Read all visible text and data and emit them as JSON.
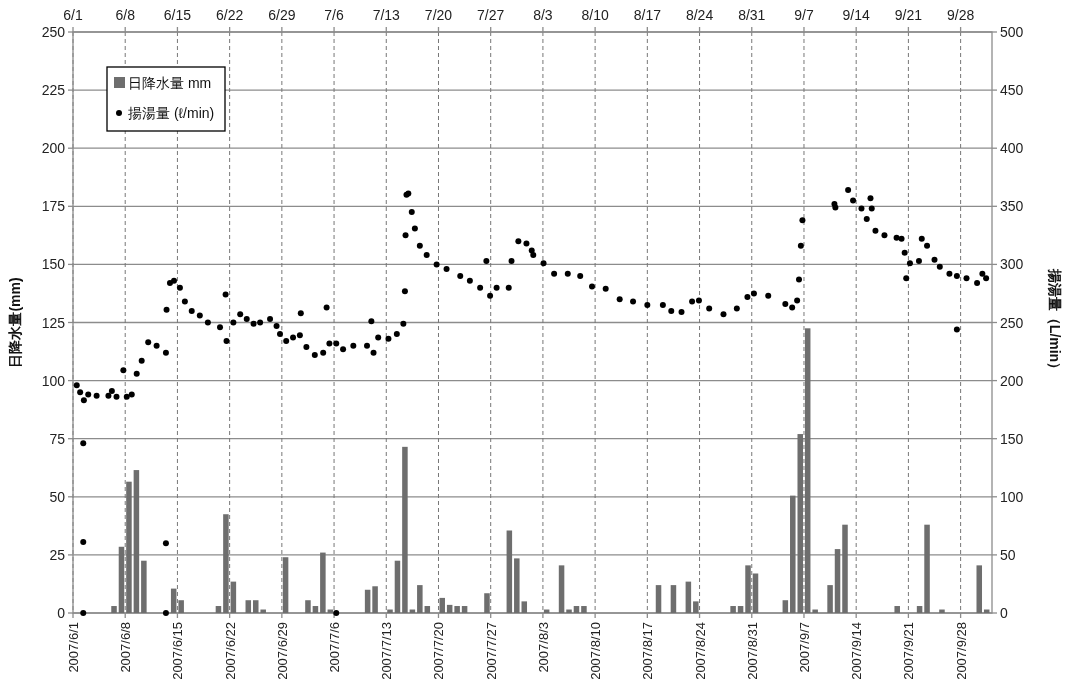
{
  "chart_data": {
    "type": "bar",
    "xlim": [
      "2007-06-01",
      "2007-10-02T05:00"
    ],
    "xticks": [
      {
        "value": "2007-06-01",
        "label": "2007/6/1"
      },
      {
        "value": "2007-06-08",
        "label": "2007/6/8"
      },
      {
        "value": "2007-06-15",
        "label": "2007/6/15"
      },
      {
        "value": "2007-06-22",
        "label": "2007/6/22"
      },
      {
        "value": "2007-06-29",
        "label": "2007/6/29"
      },
      {
        "value": "2007-07-06",
        "label": "2007/7/6"
      },
      {
        "value": "2007-07-13",
        "label": "2007/7/13"
      },
      {
        "value": "2007-07-20",
        "label": "2007/7/20"
      },
      {
        "value": "2007-07-27",
        "label": "2007/7/27"
      },
      {
        "value": "2007-08-03",
        "label": "2007/8/3"
      },
      {
        "value": "2007-08-10",
        "label": "2007/8/10"
      },
      {
        "value": "2007-08-17",
        "label": "2007/8/17"
      },
      {
        "value": "2007-08-24",
        "label": "2007/8/24"
      },
      {
        "value": "2007-08-31",
        "label": "2007/8/31"
      },
      {
        "value": "2007-09-07",
        "label": "2007/9/7"
      },
      {
        "value": "2007-09-14",
        "label": "2007/9/14"
      },
      {
        "value": "2007-09-21",
        "label": "2007/9/21"
      },
      {
        "value": "2007-09-28",
        "label": "2007/9/28"
      }
    ],
    "x2lim": [
      "2007-06-01",
      "2007-10-02T05:00"
    ],
    "x2ticks": [
      {
        "value": "2007-06-01",
        "label": "6/1"
      },
      {
        "value": "2007-06-08",
        "label": "6/8"
      },
      {
        "value": "2007-06-15",
        "label": "6/15"
      },
      {
        "value": "2007-06-22",
        "label": "6/22"
      },
      {
        "value": "2007-06-29",
        "label": "6/29"
      },
      {
        "value": "2007-07-06",
        "label": "7/6"
      },
      {
        "value": "2007-07-13",
        "label": "7/13"
      },
      {
        "value": "2007-07-20",
        "label": "7/20"
      },
      {
        "value": "2007-07-27",
        "label": "7/27"
      },
      {
        "value": "2007-08-03",
        "label": "8/3"
      },
      {
        "value": "2007-08-10",
        "label": "8/10"
      },
      {
        "value": "2007-08-17",
        "label": "8/17"
      },
      {
        "value": "2007-08-24",
        "label": "8/24"
      },
      {
        "value": "2007-08-31",
        "label": "8/31"
      },
      {
        "value": "2007-09-07",
        "label": "9/7"
      },
      {
        "value": "2007-09-14",
        "label": "9/14"
      },
      {
        "value": "2007-09-21",
        "label": "9/21"
      },
      {
        "value": "2007-09-28",
        "label": "9/28"
      }
    ],
    "ylabel": "日降水量(mm)",
    "y2label": "揚湯量（L/min）",
    "ylim": [
      0,
      250
    ],
    "yticks": [
      0,
      25,
      50,
      75,
      100,
      125,
      150,
      175,
      200,
      225,
      250
    ],
    "y2lim": [
      0,
      500
    ],
    "y2ticks": [
      0,
      50,
      100,
      150,
      200,
      250,
      300,
      350,
      400,
      450,
      500
    ],
    "grid": true,
    "legend": "top left",
    "series": [
      {
        "name": "日降水量 mm",
        "color": "#6e6e6e",
        "x": [
          "2007-06-06",
          "2007-06-07",
          "2007-06-08",
          "2007-06-09",
          "2007-06-10",
          "2007-06-14",
          "2007-06-15",
          "2007-06-20",
          "2007-06-21",
          "2007-06-22",
          "2007-06-24",
          "2007-06-25",
          "2007-06-26",
          "2007-06-29",
          "2007-07-02",
          "2007-07-03",
          "2007-07-04",
          "2007-07-05",
          "2007-07-10",
          "2007-07-11",
          "2007-07-13",
          "2007-07-14",
          "2007-07-15",
          "2007-07-16",
          "2007-07-17",
          "2007-07-18",
          "2007-07-20",
          "2007-07-21",
          "2007-07-22",
          "2007-07-23",
          "2007-07-26",
          "2007-07-29",
          "2007-07-30",
          "2007-07-31",
          "2007-08-03",
          "2007-08-05",
          "2007-08-06",
          "2007-08-07",
          "2007-08-08",
          "2007-08-18",
          "2007-08-20",
          "2007-08-22",
          "2007-08-23",
          "2007-08-28",
          "2007-08-29",
          "2007-08-30",
          "2007-08-31",
          "2007-09-04",
          "2007-09-05",
          "2007-09-06",
          "2007-09-07",
          "2007-09-08",
          "2007-09-10",
          "2007-09-11",
          "2007-09-12",
          "2007-09-19",
          "2007-09-22",
          "2007-09-23",
          "2007-09-25",
          "2007-09-30",
          "2007-10-01"
        ],
        "values": [
          3,
          28.5,
          56.5,
          61.5,
          22.5,
          10.5,
          5.5,
          3,
          42.5,
          13.5,
          5.5,
          5.5,
          1.5,
          24,
          5.5,
          3,
          26,
          1.5,
          10,
          11.5,
          1.5,
          22.5,
          71.5,
          1.5,
          12,
          3,
          6.5,
          3.5,
          3,
          3,
          8.5,
          35.5,
          23.5,
          5,
          1.5,
          20.5,
          1.5,
          3,
          3,
          12,
          12,
          13.5,
          5,
          3,
          3,
          20.5,
          17,
          5.5,
          50.5,
          77,
          122.5,
          1.5,
          12,
          27.5,
          38,
          3,
          3,
          38,
          1.5,
          20.5,
          1.5
        ]
      },
      {
        "name": "揚湯量 (ℓ/min)",
        "type": "scatter",
        "axis": "y2",
        "color": "#000000",
        "marker": "circle",
        "x": [
          "2007-06-01T12:00",
          "2007-06-01T23:00",
          "2007-06-02T09:00",
          "2007-06-02T09:00",
          "2007-06-02T09:00",
          "2007-06-02T11:00",
          "2007-06-03T01:00",
          "2007-06-04T04:00",
          "2007-06-05T18:00",
          "2007-06-06T05:00",
          "2007-06-06T20:00",
          "2007-06-07T18:00",
          "2007-06-08T05:00",
          "2007-06-08T21:00",
          "2007-06-09T13:00",
          "2007-06-10T05:00",
          "2007-06-11T02:00",
          "2007-06-12T05:00",
          "2007-06-13T11:00",
          "2007-06-13T11:00",
          "2007-06-13T11:00",
          "2007-06-13T13:00",
          "2007-06-14T00:00",
          "2007-06-14T13:00",
          "2007-06-15T08:00",
          "2007-06-16T00:00",
          "2007-06-16T22:00",
          "2007-06-18T00:00",
          "2007-06-19T02:00",
          "2007-06-20T17:00",
          "2007-06-21T11:00",
          "2007-06-21T14:00",
          "2007-06-22T12:00",
          "2007-06-23T10:00",
          "2007-06-24T07:00",
          "2007-06-25T05:00",
          "2007-06-26T02:00",
          "2007-06-27T10:00",
          "2007-06-28T07:00",
          "2007-06-28T18:00",
          "2007-06-29T14:00",
          "2007-06-30T12:00",
          "2007-07-01T10:00",
          "2007-07-01T13:00",
          "2007-07-02T07:00",
          "2007-07-03T10:00",
          "2007-07-04T13:00",
          "2007-07-05T00:00",
          "2007-07-05T09:00",
          "2007-07-06T07:00",
          "2007-07-06T07:00",
          "2007-07-07T05:00",
          "2007-07-08T14:00",
          "2007-07-10T10:00",
          "2007-07-11T00:00",
          "2007-07-11T07:00",
          "2007-07-11T22:00",
          "2007-07-13T07:00",
          "2007-07-14T10:00",
          "2007-07-15T07:00",
          "2007-07-15T12:00",
          "2007-07-15T14:00",
          "2007-07-15T17:00",
          "2007-07-15T23:00",
          "2007-07-16T10:00",
          "2007-07-16T20:00",
          "2007-07-17T12:00",
          "2007-07-18T10:00",
          "2007-07-19T18:00",
          "2007-07-21T02:00",
          "2007-07-22T22:00",
          "2007-07-24T05:00",
          "2007-07-25T14:00",
          "2007-07-26T10:00",
          "2007-07-26T22:00",
          "2007-07-27T19:00",
          "2007-07-29T10:00",
          "2007-07-29T19:00",
          "2007-07-30T17:00",
          "2007-07-31T19:00",
          "2007-08-01T12:00",
          "2007-08-01T17:00",
          "2007-08-03T02:00",
          "2007-08-04T12:00",
          "2007-08-06T08:00",
          "2007-08-08T00:00",
          "2007-08-09T14:00",
          "2007-08-11T10:00",
          "2007-08-13T07:00",
          "2007-08-15T02:00",
          "2007-08-17T00:00",
          "2007-08-19T02:00",
          "2007-08-20T05:00",
          "2007-08-21T14:00",
          "2007-08-23T00:00",
          "2007-08-23T22:00",
          "2007-08-25T07:00",
          "2007-08-27T05:00",
          "2007-08-29T00:00",
          "2007-08-30T10:00",
          "2007-08-31T07:00",
          "2007-09-02T05:00",
          "2007-09-04T12:00",
          "2007-09-05T10:00",
          "2007-09-06T02:00",
          "2007-09-06T08:00",
          "2007-09-06T14:00",
          "2007-09-06T19:00",
          "2007-09-11T02:00",
          "2007-09-11T05:00",
          "2007-09-12T22:00",
          "2007-09-13T14:00",
          "2007-09-14T17:00",
          "2007-09-15T10:00",
          "2007-09-15T22:00",
          "2007-09-16T02:00",
          "2007-09-16T14:00",
          "2007-09-17T19:00",
          "2007-09-19T10:00",
          "2007-09-20T02:00",
          "2007-09-20T12:00",
          "2007-09-20T17:00",
          "2007-09-21T05:00",
          "2007-09-22T10:00",
          "2007-09-22T19:00",
          "2007-09-23T12:00",
          "2007-09-24T12:00",
          "2007-09-25T05:00",
          "2007-09-26T12:00",
          "2007-09-27T12:00",
          "2007-09-27T12:00",
          "2007-09-28T19:00",
          "2007-09-30T05:00",
          "2007-09-30T22:00",
          "2007-10-01T10:00"
        ],
        "values": [
          196,
          190,
          146,
          61,
          0,
          183,
          188,
          187,
          187,
          191,
          186,
          209,
          186,
          188,
          206,
          217,
          233,
          230,
          224,
          60,
          0,
          261,
          284,
          286,
          280,
          268,
          260,
          256,
          250,
          246,
          274,
          234,
          250,
          257,
          253,
          249,
          250,
          253,
          247,
          240,
          234,
          237,
          239,
          258,
          229,
          222,
          224,
          263,
          232,
          232,
          0,
          227,
          230,
          230,
          251,
          224,
          237,
          236,
          240,
          249,
          277,
          325,
          360,
          361,
          345,
          331,
          316,
          308,
          300,
          296,
          290,
          286,
          280,
          303,
          273,
          280,
          280,
          303,
          320,
          318,
          312,
          308,
          301,
          292,
          292,
          290,
          281,
          279,
          270,
          268,
          265,
          265,
          260,
          259,
          268,
          269,
          262,
          257,
          262,
          272,
          275,
          273,
          266,
          263,
          269,
          287,
          316,
          338,
          352,
          349,
          364,
          355,
          348,
          339,
          357,
          348,
          329,
          325,
          323,
          322,
          310,
          288,
          301,
          303,
          322,
          316,
          304,
          298,
          292,
          290,
          244,
          288,
          284,
          292,
          288
        ]
      }
    ]
  }
}
